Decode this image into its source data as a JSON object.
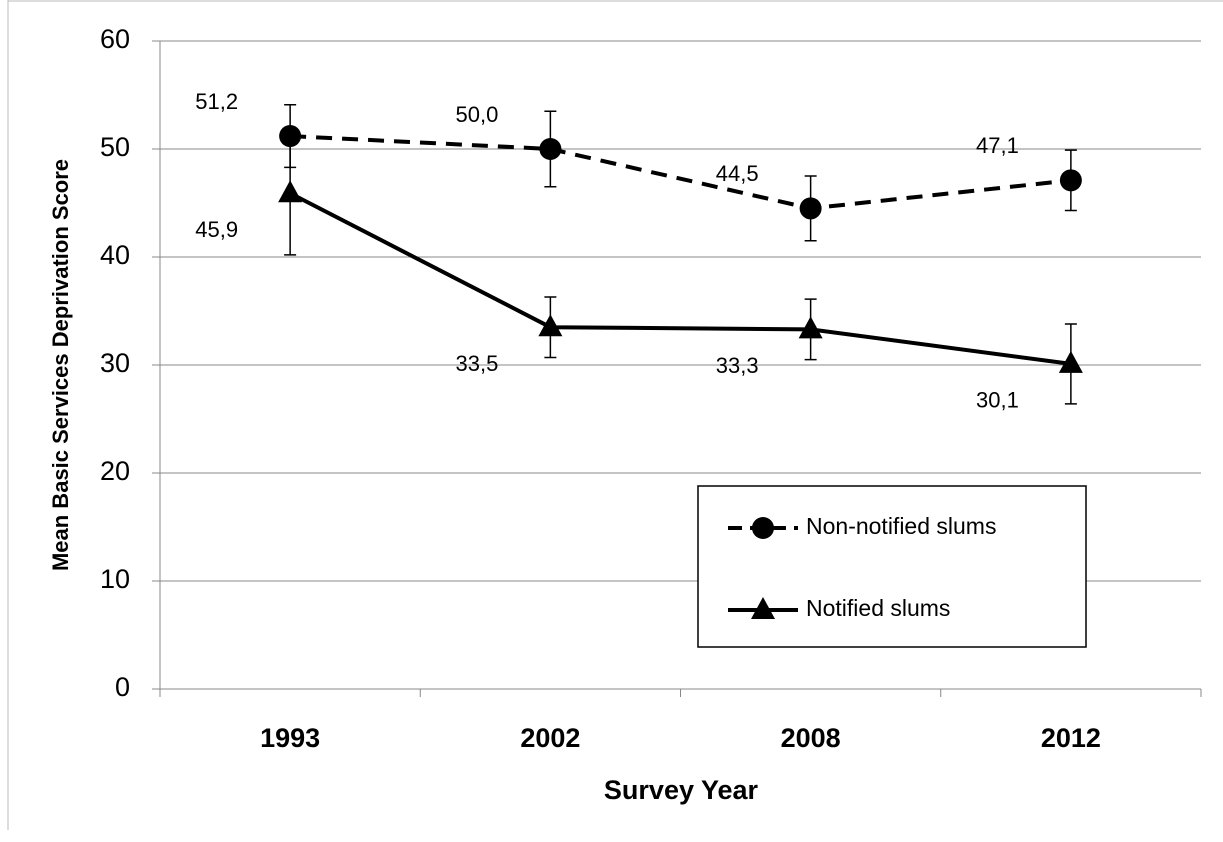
{
  "chart_data": {
    "type": "line",
    "x_label": "Survey Year",
    "y_label": "Mean Basic Services Deprivation Score",
    "categories": [
      "1993",
      "2002",
      "2008",
      "2012"
    ],
    "ylim": [
      0,
      60
    ],
    "yticks": [
      0,
      10,
      20,
      30,
      40,
      50,
      60
    ],
    "grid": true,
    "legend": "lower-right",
    "series": [
      {
        "name": "Non-notified slums",
        "color": "#000000",
        "dash": true,
        "marker": "circle",
        "values": [
          51.2,
          50.0,
          44.5,
          47.1
        ],
        "value_labels": [
          "51,2",
          "50,0",
          "44,5",
          "47,1"
        ],
        "errors": [
          2.9,
          3.5,
          3.0,
          2.8
        ]
      },
      {
        "name": "Notified slums",
        "color": "#000000",
        "dash": false,
        "marker": "triangle",
        "values": [
          45.9,
          33.5,
          33.3,
          30.1
        ],
        "value_labels": [
          "45,9",
          "33,5",
          "33,3",
          "30,1"
        ],
        "errors": [
          5.7,
          2.8,
          2.8,
          3.7
        ]
      }
    ]
  }
}
